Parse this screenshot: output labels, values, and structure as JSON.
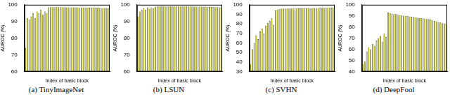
{
  "chart_data": [
    {
      "type": "bar",
      "title": "(a) TinyImageNet",
      "x_label": "Index of basic block",
      "y_label": "AUROC (%)",
      "categories": [
        null,
        null,
        null,
        null,
        null,
        null,
        null,
        null,
        null,
        null,
        null,
        null,
        null,
        null,
        null,
        null,
        null,
        null,
        null,
        null,
        null,
        null,
        null,
        null,
        null,
        null,
        null,
        null,
        null,
        null,
        null,
        null,
        null,
        null,
        null,
        null,
        null,
        null,
        null,
        null,
        null,
        null,
        null,
        null
      ],
      "values": [
        74,
        92,
        91,
        93,
        95,
        92,
        96,
        95,
        97,
        94,
        96,
        95,
        98.5,
        98.6,
        98.6,
        98.6,
        98.6,
        98.6,
        98.6,
        98.6,
        98.5,
        98.5,
        98.5,
        98.5,
        98.5,
        98.5,
        98.4,
        98.4,
        98.4,
        98.4,
        98.3,
        98.3,
        98.3,
        98.3,
        98.2,
        98.2,
        98.2,
        98.1,
        98.1,
        98,
        98,
        98,
        97.9,
        97.8
      ],
      "color": "#cccc00",
      "ylim": [
        60,
        100
      ],
      "yticks": [
        60,
        70,
        80,
        90,
        100
      ],
      "tick_labels": "y"
    },
    {
      "type": "bar",
      "title": "(b) LSUN",
      "x_label": "Index of basic block",
      "y_label": "AUROC (%)",
      "categories": [
        null,
        null,
        null,
        null,
        null,
        null,
        null,
        null,
        null,
        null,
        null,
        null,
        null,
        null,
        null,
        null,
        null,
        null,
        null,
        null,
        null,
        null,
        null,
        null,
        null,
        null,
        null,
        null,
        null,
        null,
        null,
        null,
        null,
        null,
        null,
        null,
        null,
        null,
        null,
        null,
        null,
        null,
        null,
        null
      ],
      "values": [
        93,
        96,
        97,
        98,
        97,
        98.5,
        97.5,
        98.5,
        98,
        98.8,
        99,
        99,
        99,
        99,
        99,
        99,
        99,
        99,
        99,
        99,
        99,
        99,
        99,
        99,
        99,
        99,
        99,
        99,
        99,
        98.9,
        98.9,
        98.9,
        98.9,
        98.8,
        98.8,
        98.8,
        98.8,
        98.7,
        98.7,
        98.7,
        98.6,
        98.6,
        98.5,
        98.5
      ],
      "color": "#cccc00",
      "ylim": [
        60,
        100
      ],
      "yticks": [
        60,
        70,
        80,
        90,
        100
      ],
      "tick_labels": "y"
    },
    {
      "type": "bar",
      "title": "(c) SVHN",
      "x_label": "Index of basic block",
      "y_label": "AUROC (%)",
      "categories": [
        null,
        null,
        null,
        null,
        null,
        null,
        null,
        null,
        null,
        null,
        null,
        null,
        null,
        null,
        null,
        null,
        null,
        null,
        null,
        null,
        null,
        null,
        null,
        null,
        null,
        null,
        null,
        null,
        null,
        null,
        null,
        null,
        null,
        null,
        null,
        null,
        null,
        null,
        null,
        null,
        null,
        null,
        null,
        null
      ],
      "values": [
        38,
        53,
        60,
        68,
        64,
        72,
        75,
        70,
        78,
        81,
        83,
        86,
        79,
        94,
        95,
        95.5,
        95.8,
        96,
        96,
        96,
        96,
        96,
        96.1,
        96.1,
        96.2,
        96.2,
        96.2,
        96.3,
        96.3,
        96.3,
        96.4,
        96.4,
        96.5,
        96.5,
        96.5,
        96.6,
        96.7,
        96.7,
        96.8,
        96.9,
        97,
        97,
        97.2,
        97.3
      ],
      "color": "#cccc00",
      "ylim": [
        30,
        100
      ],
      "yticks": [
        30,
        40,
        50,
        60,
        70,
        80,
        90,
        100
      ],
      "tick_labels": "y"
    },
    {
      "type": "bar",
      "title": "(d) DeepFool",
      "x_label": "Index of basic block",
      "y_label": "AUROC (%)",
      "categories": [
        null,
        null,
        null,
        null,
        null,
        null,
        null,
        null,
        null,
        null,
        null,
        null,
        null,
        null,
        null,
        null,
        null,
        null,
        null,
        null,
        null,
        null,
        null,
        null,
        null,
        null,
        null,
        null,
        null,
        null,
        null,
        null,
        null,
        null,
        null,
        null,
        null,
        null,
        null,
        null,
        null,
        null,
        null,
        null
      ],
      "values": [
        47,
        49,
        58,
        62,
        60,
        65,
        63,
        68,
        70,
        72,
        67,
        74,
        71,
        93,
        92.5,
        92,
        91.5,
        91.5,
        91,
        90.8,
        90.5,
        90.2,
        90,
        89.8,
        89.5,
        89.2,
        89,
        88.8,
        88.5,
        88.2,
        88,
        87.8,
        87.5,
        87.2,
        87,
        86.5,
        86,
        85.5,
        85,
        84.5,
        84,
        83.5,
        83,
        82.5
      ],
      "color": "#cccc00",
      "ylim": [
        40,
        100
      ],
      "yticks": [
        40,
        50,
        60,
        70,
        80,
        90,
        100
      ],
      "tick_labels": "y"
    }
  ]
}
